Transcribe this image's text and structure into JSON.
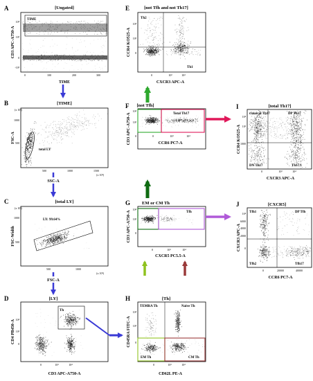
{
  "colors": {
    "blue_arrow": "#3a3ad6",
    "green_dark": "#0f6b12",
    "green_bright": "#2ea82e",
    "pink": "#e0185a",
    "purple": "#b05ad8",
    "yellow_green": "#8fc21f",
    "dark_red": "#9a3a3a",
    "dots": "#222222"
  },
  "panels": [
    {
      "id": "A",
      "letter": "A",
      "title": "[Ungated]",
      "xlabel": "TIME",
      "ylabel": "CD3 APC-A750-A",
      "xticks": [
        "0",
        "100",
        "200",
        "300"
      ],
      "yticks": [
        "10⁴",
        "10³",
        "0",
        "-10³"
      ],
      "gates": [
        "TIME"
      ]
    },
    {
      "id": "B",
      "letter": "B",
      "title": "[TIME]",
      "xlabel": "SSC-A",
      "ylabel": "FSC-A",
      "xticks": [
        "500",
        "1000",
        "1500"
      ],
      "yticks": [
        "1000",
        "500"
      ],
      "xunit": "(x 10³)",
      "yunit": "(x 10³)",
      "gates": [
        "total LY"
      ]
    },
    {
      "id": "C",
      "letter": "C",
      "title": "[total LY]",
      "xlabel": "FSC-A",
      "ylabel": "FSC-Width",
      "xticks": [
        "500",
        "1000"
      ],
      "yticks": [
        "1000",
        "500"
      ],
      "xunit": "(x 10³)",
      "yunit": "(x 10³)",
      "gates": [
        "LY: 99.64%"
      ]
    },
    {
      "id": "D",
      "letter": "D",
      "title": "[LY]",
      "xlabel": "CD3 APC-A750-A",
      "ylabel": "CD4 PB450-A",
      "xticks": [
        "0",
        "10³",
        "10⁴"
      ],
      "yticks": [
        "10⁴",
        "10³",
        "0"
      ],
      "gates": [
        "Th"
      ]
    },
    {
      "id": "E",
      "letter": "E",
      "title": "[not Tfh and not Th17]",
      "xlabel": "CXCR3 APC-A",
      "ylabel": "CCR4 KO525-A",
      "xticks": [
        "0",
        "10³",
        "10⁴"
      ],
      "yticks": [
        "10⁴",
        "10³",
        "0"
      ],
      "gates": [
        "Th2",
        "Th1"
      ]
    },
    {
      "id": "F",
      "letter": "F",
      "title": "[not Tfh]",
      "xlabel": "CCR6 PC7-A",
      "ylabel": "CD3 APC-A750-A",
      "xticks": [
        "0",
        "10³",
        "10⁴"
      ],
      "yticks": [
        "10⁴",
        "10³",
        "0"
      ],
      "gates": [
        "Total Th17"
      ]
    },
    {
      "id": "G",
      "letter": "G",
      "title": "EM or CM Th",
      "xlabel": "CXCR5 PC5.5-A",
      "ylabel": "CD3 APC-A750-A",
      "xticks": [
        "0",
        "10³",
        "10⁴"
      ],
      "yticks": [
        "10⁴",
        "10³",
        "0"
      ],
      "gates": [
        "Tfh"
      ]
    },
    {
      "id": "H",
      "letter": "H",
      "title": "[Th]",
      "xlabel": "CD62L PE-A",
      "ylabel": "CD45RA FITC-A",
      "xticks": [
        "0",
        "10³",
        "10⁴"
      ],
      "yticks": [
        "10⁴",
        "10³",
        "0"
      ],
      "gates": [
        "TEMRA Th",
        "Naive Th",
        "EM Th",
        "CM Th"
      ]
    },
    {
      "id": "I",
      "letter": "I",
      "title": "[total Th17]",
      "xlabel": "CXCR3 APC-A",
      "ylabel": "CCR4 KO525-A",
      "xticks": [
        "0",
        "10³",
        "10⁴"
      ],
      "yticks": [
        "10⁴",
        "10³",
        "1000"
      ],
      "gates": [
        "classical Th17",
        "DP Th17",
        "DN Th17",
        "Th17.1"
      ]
    },
    {
      "id": "J",
      "letter": "J",
      "title": "[CXCR5]",
      "xlabel": "CCR6 PC7-A",
      "ylabel": "CXCR3 APC-A",
      "xticks": [
        "0",
        "20000",
        "40000"
      ],
      "yticks": [
        "10⁴",
        "6000",
        "4000",
        "2000",
        "0"
      ],
      "gates": [
        "Tfh1",
        "DP Tfh",
        "Tfh2",
        "Tfh17"
      ]
    }
  ]
}
